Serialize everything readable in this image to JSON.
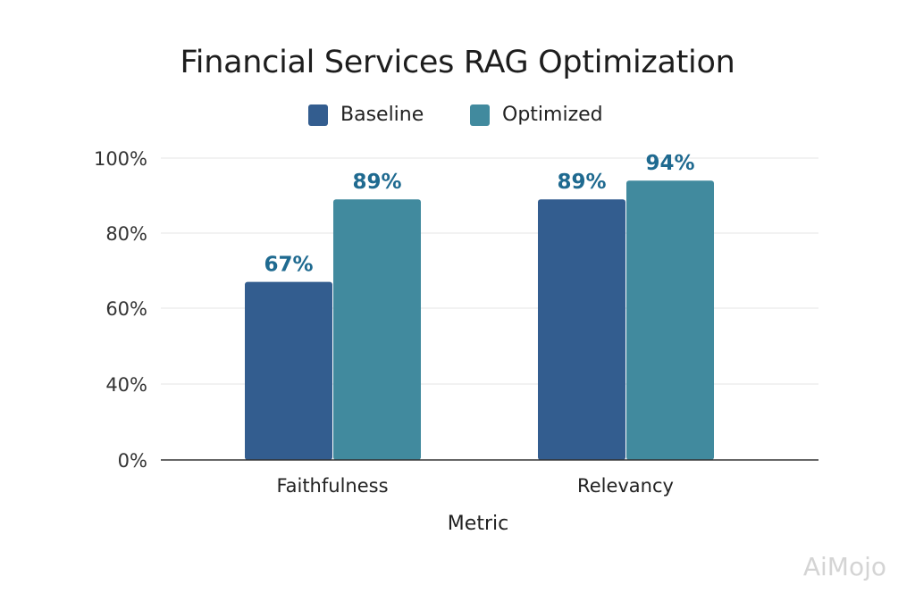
{
  "chart_data": {
    "type": "bar",
    "title": "Financial Services RAG Optimization",
    "xlabel": "Metric",
    "ylabel": "",
    "categories": [
      "Faithfulness",
      "Relevancy"
    ],
    "series": [
      {
        "name": "Baseline",
        "values": [
          67,
          89
        ],
        "labels": [
          "67%",
          "89%"
        ],
        "color": "#335d8f"
      },
      {
        "name": "Optimized",
        "values": [
          89,
          94
        ],
        "labels": [
          "89%",
          "94%"
        ],
        "color": "#418a9e"
      }
    ],
    "yticks": [
      0,
      40,
      60,
      80,
      100
    ],
    "ytick_labels": [
      "0%",
      "40%",
      "60%",
      "80%",
      "100%"
    ],
    "ylim": [
      0,
      100
    ],
    "grid": true,
    "legend": "top-center",
    "data_label_color": "#1f6a90"
  },
  "watermark": "AiMojo"
}
